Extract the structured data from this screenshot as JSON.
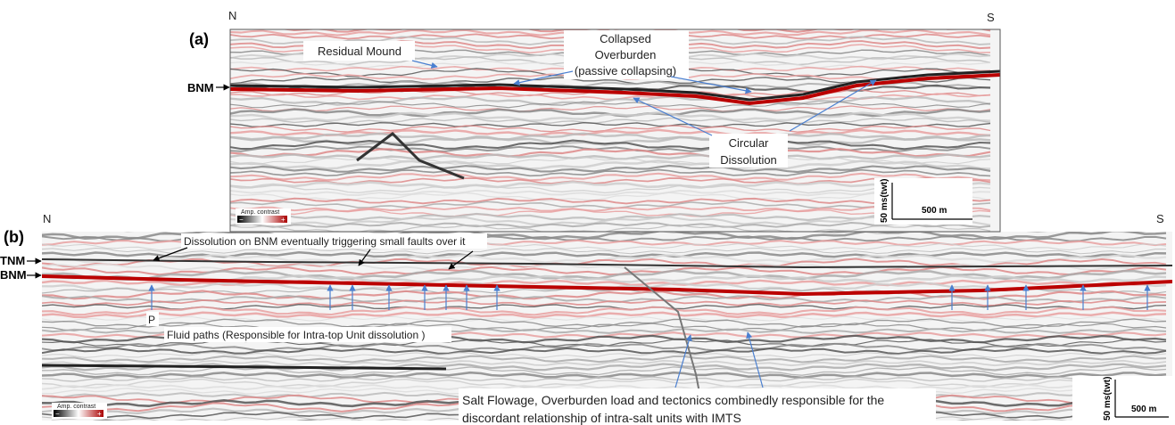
{
  "panel_a": {
    "label": "(a)",
    "north": "N",
    "south": "S",
    "horizon": "BNM",
    "annotations": {
      "residual_mound": "Residual Mound",
      "collapsed": [
        "Collapsed",
        "Overburden",
        "(passive collapsing)"
      ],
      "circular": [
        "Circular",
        "Dissolution"
      ]
    },
    "colorbar": {
      "title": "Amp. contrast",
      "minus": "−",
      "plus": "+"
    },
    "scale": {
      "vertical": "50 ms(twt)",
      "horizontal": "500 m"
    }
  },
  "panel_b": {
    "label": "(b)",
    "north": "N",
    "south": "S",
    "horizons": [
      "TNM",
      "BNM"
    ],
    "annotations": {
      "faults": "Dissolution on BNM eventually triggering small faults over it",
      "p": "P",
      "fluid_paths": "Fluid paths (Responsible for Intra-top Unit dissolution )",
      "salt_flowage": [
        "Salt Flowage, Overburden load and tectonics combinedly responsible for the",
        "discordant relationship of intra-salt units with IMTS"
      ]
    },
    "colorbar": {
      "title": "Amp. contrast",
      "minus": "−",
      "plus": "+"
    },
    "scale": {
      "vertical": "50 ms(twt)",
      "horizontal": "500 m"
    }
  }
}
